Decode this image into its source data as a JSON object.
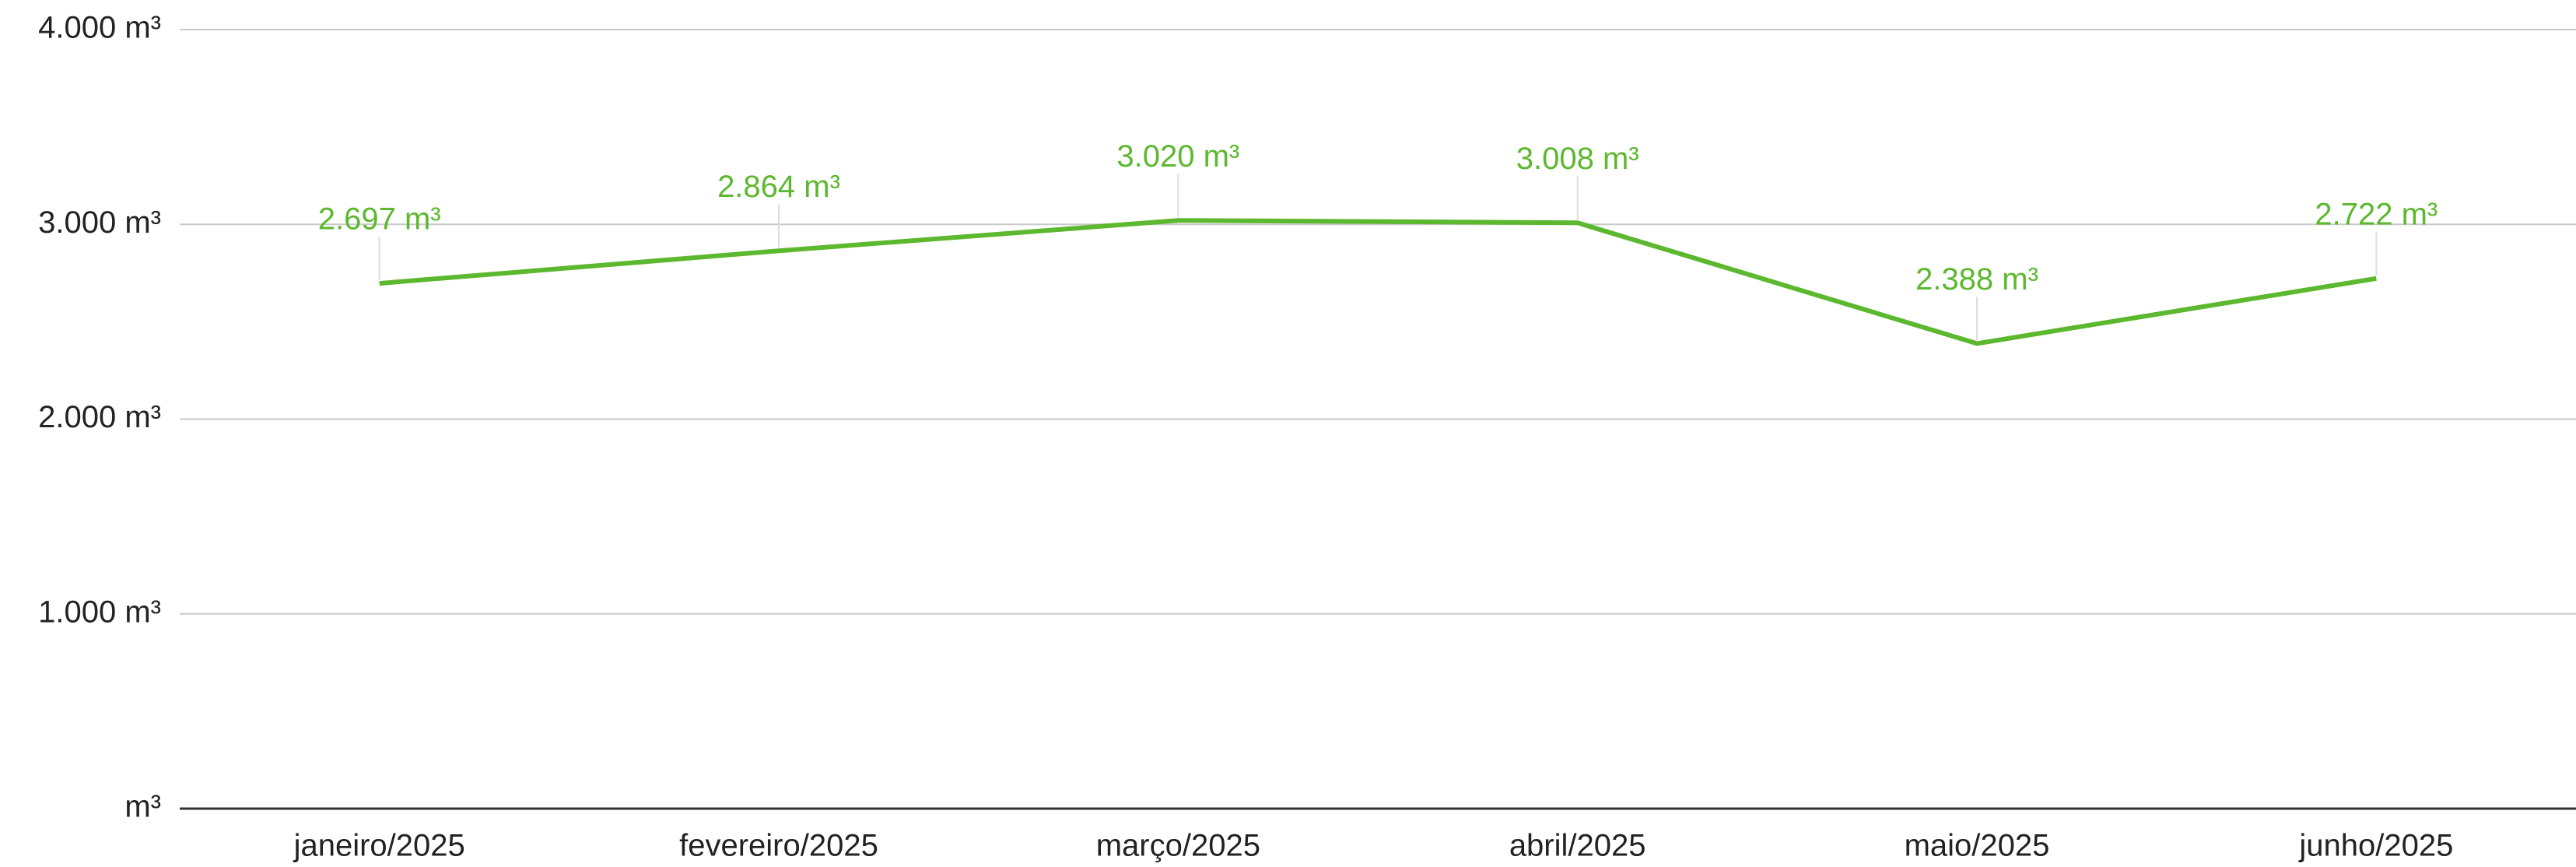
{
  "chart_data": {
    "type": "line",
    "categories": [
      "janeiro/2025",
      "fevereiro/2025",
      "março/2025",
      "abril/2025",
      "maio/2025",
      "junho/2025"
    ],
    "series": [
      {
        "name": "m³",
        "color": "#5cb82e",
        "values": [
          2697,
          2864,
          3020,
          3008,
          2388,
          2722
        ],
        "value_labels": [
          "2.697 m³",
          "2.864 m³",
          "3.020 m³",
          "3.008 m³",
          "2.388 m³",
          "2.722 m³"
        ]
      }
    ],
    "ylim": [
      0,
      4000
    ],
    "yticks": [
      {
        "value": 0,
        "label": "m³"
      },
      {
        "value": 1000,
        "label": "1.000 m³"
      },
      {
        "value": 2000,
        "label": "2.000 m³"
      },
      {
        "value": 3000,
        "label": "3.000 m³"
      },
      {
        "value": 4000,
        "label": "4.000 m³"
      }
    ],
    "grid": true
  }
}
